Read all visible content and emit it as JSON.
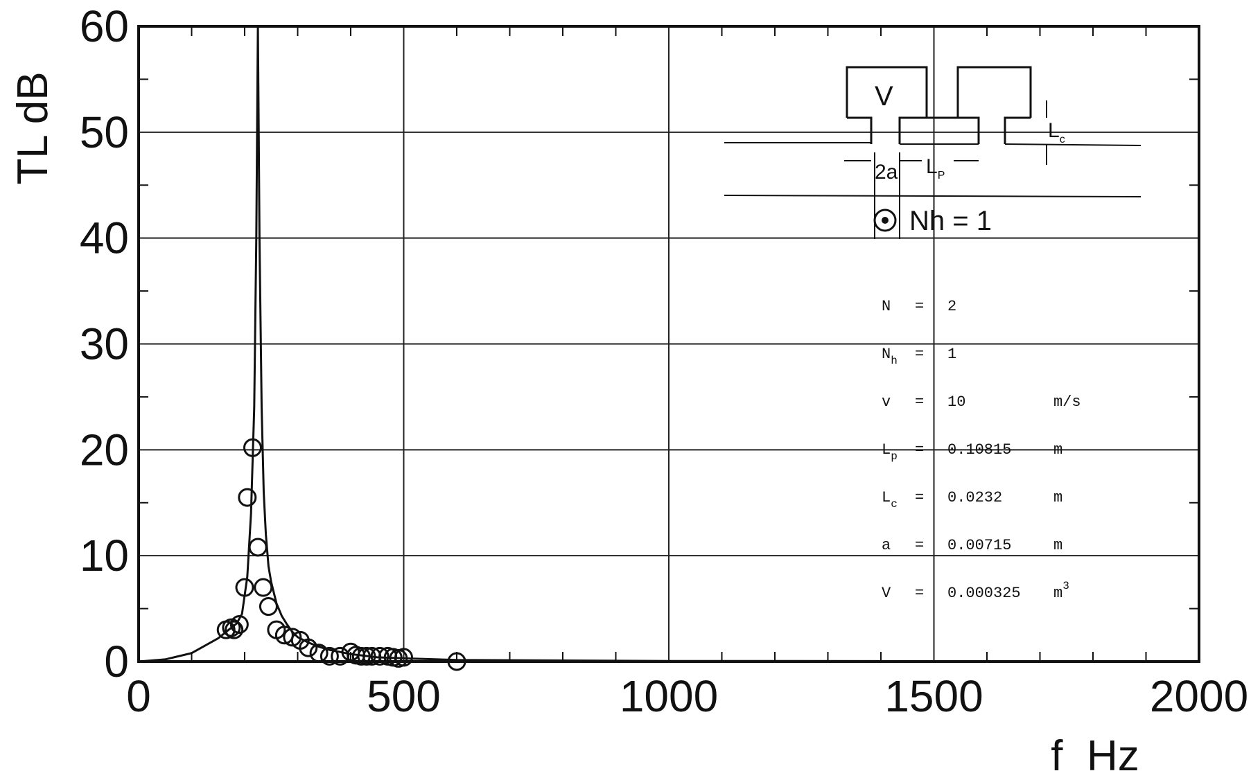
{
  "chart_data": {
    "type": "line",
    "xlabel": "f  Hz",
    "ylabel": "TL  dB",
    "xlim": [
      0,
      2000
    ],
    "ylim": [
      0,
      60
    ],
    "x_ticks": [
      0,
      500,
      1000,
      1500,
      2000
    ],
    "y_ticks": [
      0,
      10,
      20,
      30,
      40,
      50,
      60
    ],
    "grid": true,
    "series": [
      {
        "style": "solid-line",
        "x": [
          0,
          50,
          100,
          150,
          170,
          185,
          195,
          205,
          212,
          218,
          222,
          225,
          228,
          232,
          236,
          240,
          245,
          250,
          260,
          270,
          280,
          290,
          300,
          320,
          340,
          360,
          380,
          400,
          450,
          500,
          600,
          800,
          1000,
          1200,
          1500,
          2000
        ],
        "y": [
          0,
          0.2,
          0.8,
          2.2,
          3.0,
          3.6,
          4.5,
          8.0,
          14.0,
          24.0,
          40.0,
          60.0,
          40.0,
          24.0,
          16.0,
          12.0,
          9.0,
          7.5,
          5.5,
          4.3,
          3.5,
          2.8,
          2.3,
          1.8,
          1.4,
          1.1,
          0.9,
          0.7,
          0.4,
          0.3,
          0.15,
          0.1,
          0.05,
          0.05,
          0.03,
          0.02
        ]
      },
      {
        "style": "open-circles",
        "x": [
          165,
          175,
          180,
          190,
          200,
          205,
          215,
          225,
          235,
          245,
          260,
          275,
          290,
          305,
          320,
          340,
          360,
          380,
          400,
          410,
          420,
          430,
          440,
          455,
          470,
          480,
          490,
          500,
          600
        ],
        "y": [
          3.0,
          3.2,
          3.0,
          3.5,
          7.0,
          15.5,
          20.2,
          10.8,
          7.0,
          5.2,
          3.0,
          2.5,
          2.3,
          2.0,
          1.3,
          0.8,
          0.5,
          0.5,
          0.9,
          0.6,
          0.5,
          0.5,
          0.5,
          0.5,
          0.5,
          0.4,
          0.3,
          0.4,
          0.0
        ]
      }
    ],
    "annotations": {
      "diagram": {
        "volume_label": "V",
        "neck_label": "2a",
        "pipe_label": "L",
        "pipe_sub": "P",
        "neck_length_label": "L",
        "neck_length_sub": "c",
        "marker_label": "Nh = 1"
      },
      "parameters": [
        {
          "name": "N",
          "sub": "",
          "eq": "=",
          "value": "2",
          "unit": "",
          "sup": ""
        },
        {
          "name": "N",
          "sub": "h",
          "eq": "=",
          "value": "1",
          "unit": "",
          "sup": ""
        },
        {
          "name": "v",
          "sub": "",
          "eq": "=",
          "value": "10",
          "unit": "m/s",
          "sup": ""
        },
        {
          "name": "L",
          "sub": "p",
          "eq": "=",
          "value": "0.10815",
          "unit": "m",
          "sup": ""
        },
        {
          "name": "L",
          "sub": "c",
          "eq": "=",
          "value": "0.0232",
          "unit": "m",
          "sup": ""
        },
        {
          "name": "a",
          "sub": "",
          "eq": "=",
          "value": "0.00715",
          "unit": "m",
          "sup": ""
        },
        {
          "name": "V",
          "sub": "",
          "eq": "=",
          "value": "0.000325",
          "unit": "m",
          "sup": "3"
        }
      ]
    }
  }
}
